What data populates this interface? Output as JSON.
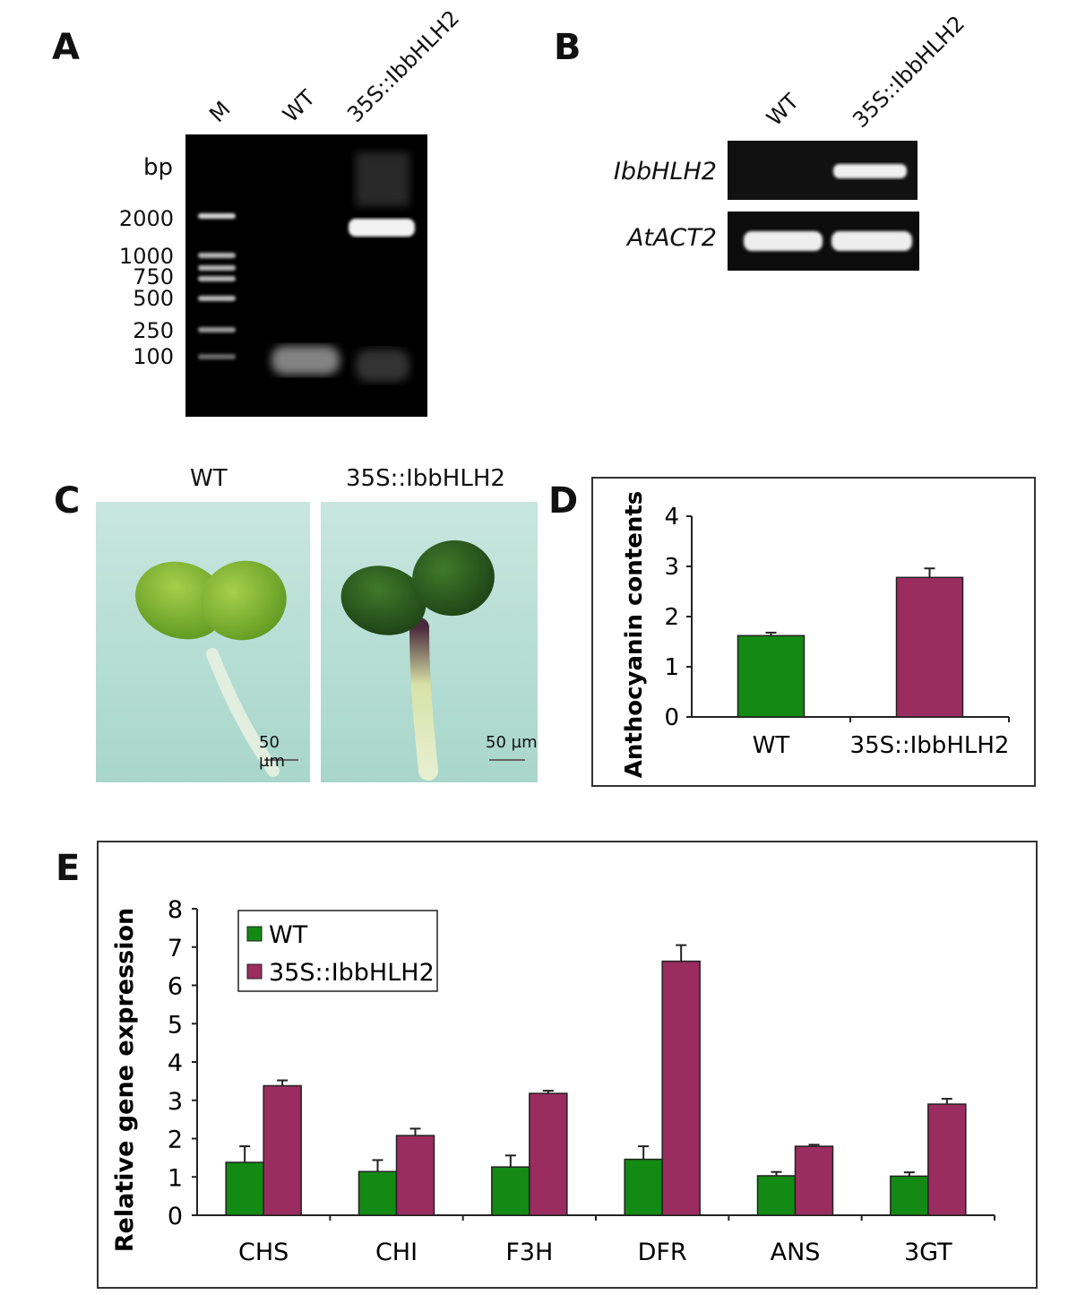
{
  "panels": {
    "a": "A",
    "b": "B",
    "c": "C",
    "d": "D",
    "e": "E"
  },
  "panel_a": {
    "lanes": [
      "M",
      "WT",
      "35S::IbbHLH2"
    ],
    "unit": "bp",
    "markers": [
      "2000",
      "1000",
      "750",
      "500",
      "250",
      "100"
    ]
  },
  "panel_b": {
    "lanes": [
      "WT",
      "35S::IbbHLH2"
    ],
    "genes": [
      "IbbHLH2",
      "AtACT2"
    ]
  },
  "panel_c": {
    "labels": [
      "WT",
      "35S::IbbHLH2"
    ],
    "scale_bar": "50 µm"
  },
  "chart_data": [
    {
      "type": "bar",
      "categories": [
        "WT",
        "35S::IbbHLH2"
      ],
      "values": [
        1.62,
        2.78
      ],
      "errors": [
        0.06,
        0.18
      ],
      "colors": [
        "#138a13",
        "#9b2c5f"
      ],
      "ylabel": "Anthocyanin contents",
      "ylim": [
        0,
        4
      ],
      "yticks": [
        "0",
        "1",
        "2",
        "3",
        "4"
      ]
    },
    {
      "type": "bar",
      "categories": [
        "CHS",
        "CHI",
        "F3H",
        "DFR",
        "ANS",
        "3GT"
      ],
      "series": [
        {
          "name": "WT",
          "color": "#138a13",
          "values": [
            1.38,
            1.14,
            1.26,
            1.46,
            1.03,
            1.02
          ],
          "errors": [
            0.42,
            0.3,
            0.3,
            0.34,
            0.1,
            0.1
          ]
        },
        {
          "name": "35S::IbbHLH2",
          "color": "#9b2c5f",
          "values": [
            3.38,
            2.08,
            3.18,
            6.63,
            1.8,
            2.9
          ],
          "errors": [
            0.14,
            0.18,
            0.07,
            0.42,
            0.04,
            0.14
          ]
        }
      ],
      "ylabel": "Relative gene expression",
      "ylim": [
        0,
        8
      ],
      "yticks": [
        "0",
        "1",
        "2",
        "3",
        "4",
        "5",
        "6",
        "7",
        "8"
      ],
      "legend": "top-left"
    }
  ]
}
